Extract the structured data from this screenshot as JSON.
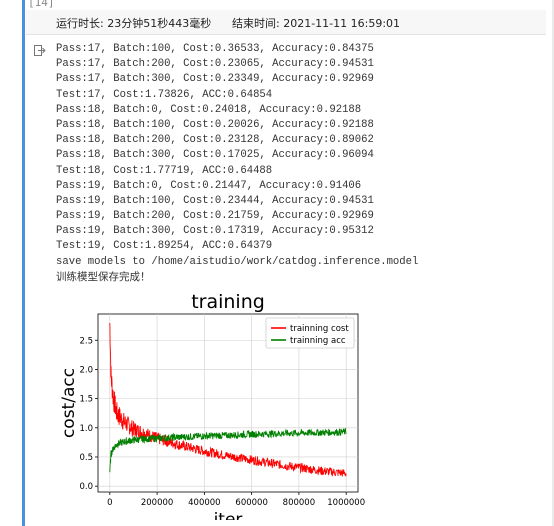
{
  "cell": {
    "number": "[14]"
  },
  "exec_bar": {
    "runtime_label": "运行时长: 23分钟51秒443毫秒",
    "end_time_label": "结束时间: 2021-11-11 16:59:01"
  },
  "output_icon": "output-arrow-icon",
  "log_lines": [
    "Pass:17, Batch:100, Cost:0.36533, Accuracy:0.84375",
    "Pass:17, Batch:200, Cost:0.23065, Accuracy:0.94531",
    "Pass:17, Batch:300, Cost:0.23349, Accuracy:0.92969",
    "Test:17, Cost:1.73826, ACC:0.64854",
    "Pass:18, Batch:0, Cost:0.24018, Accuracy:0.92188",
    "Pass:18, Batch:100, Cost:0.20026, Accuracy:0.92188",
    "Pass:18, Batch:200, Cost:0.23128, Accuracy:0.89062",
    "Pass:18, Batch:300, Cost:0.17025, Accuracy:0.96094",
    "Test:18, Cost:1.77719, ACC:0.64488",
    "Pass:19, Batch:0, Cost:0.21447, Accuracy:0.91406",
    "Pass:19, Batch:100, Cost:0.23444, Accuracy:0.94531",
    "Pass:19, Batch:200, Cost:0.21759, Accuracy:0.92969",
    "Pass:19, Batch:300, Cost:0.17319, Accuracy:0.95312",
    "Test:19, Cost:1.89254, ACC:0.64379",
    "save models to /home/aistudio/work/catdog.inference.model",
    "训练模型保存完成！"
  ],
  "chart_data": {
    "type": "line",
    "title": "training",
    "xlabel": "iter",
    "ylabel": "cost/acc",
    "xlim": [
      -50000,
      1050000
    ],
    "ylim": [
      -0.1,
      2.95
    ],
    "xticks": [
      0,
      200000,
      400000,
      600000,
      800000,
      1000000
    ],
    "xtick_labels": [
      "0",
      "200000",
      "400000",
      "600000",
      "800000",
      "1000000"
    ],
    "yticks": [
      0.0,
      0.5,
      1.0,
      1.5,
      2.0,
      2.5
    ],
    "ytick_labels": [
      "0.0",
      "0.5",
      "1.0",
      "1.5",
      "2.0",
      "2.5"
    ],
    "grid": true,
    "legend_position": "upper-right",
    "series": [
      {
        "name": "trainning cost",
        "color": "#ff0000",
        "x": [
          0,
          5000,
          15000,
          30000,
          60000,
          100000,
          150000,
          200000,
          300000,
          400000,
          500000,
          600000,
          700000,
          800000,
          900000,
          1000000
        ],
        "y": [
          2.8,
          1.9,
          1.5,
          1.25,
          1.1,
          0.98,
          0.9,
          0.82,
          0.7,
          0.6,
          0.52,
          0.45,
          0.38,
          0.32,
          0.26,
          0.22
        ]
      },
      {
        "name": "trainning acc",
        "color": "#008000",
        "x": [
          0,
          5000,
          15000,
          30000,
          60000,
          100000,
          150000,
          200000,
          300000,
          400000,
          500000,
          600000,
          700000,
          800000,
          900000,
          1000000
        ],
        "y": [
          0.25,
          0.55,
          0.65,
          0.72,
          0.76,
          0.79,
          0.81,
          0.82,
          0.84,
          0.86,
          0.87,
          0.89,
          0.9,
          0.91,
          0.92,
          0.93
        ]
      }
    ]
  }
}
